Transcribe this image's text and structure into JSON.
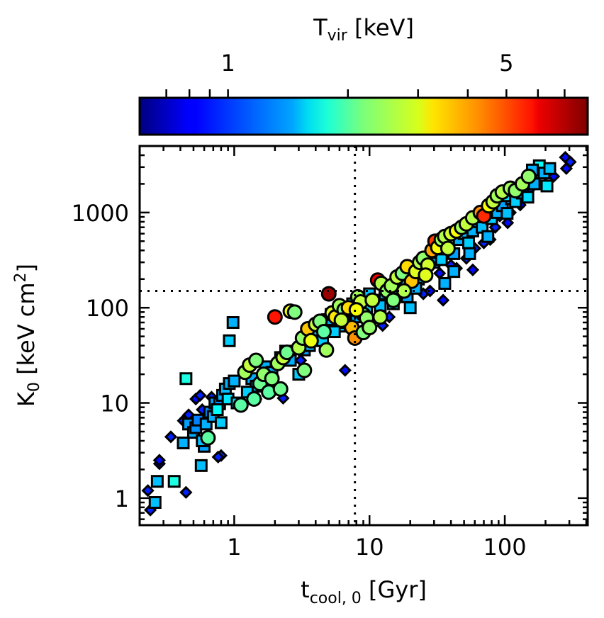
{
  "chart_data": {
    "type": "scatter",
    "title": "",
    "xlabel": "t_cool,0 [Gyr]",
    "xlabel_main": "t",
    "xlabel_sub": "cool, 0",
    "xlabel_rest": " [Gyr]",
    "ylabel_main": "K",
    "ylabel_sub": "0",
    "ylabel_rest": " [keV cm",
    "ylabel_sup": "2",
    "ylabel_end": "]",
    "ylabel": "K_0 [keV cm^2]",
    "xscale": "log",
    "yscale": "log",
    "xlim": [
      0.2,
      410
    ],
    "ylim": [
      0.52,
      5000
    ],
    "xticks": [
      1,
      10,
      100
    ],
    "xtick_labels": [
      "1",
      "10",
      "100"
    ],
    "yticks": [
      1,
      10,
      100,
      1000
    ],
    "ytick_labels": [
      "1",
      "10",
      "100",
      "1000"
    ],
    "grid": false,
    "reference_lines": [
      {
        "orientation": "vertical",
        "value": 7.8,
        "style": "dotted"
      },
      {
        "orientation": "horizontal",
        "value": 150,
        "style": "dotted"
      }
    ],
    "colorbar": {
      "label": "T_vir [keV]",
      "label_main": "T",
      "label_sub": "vir",
      "label_rest": " [keV]",
      "cmap": "jet",
      "scale": "log",
      "range": [
        0.6,
        8.0
      ],
      "ticks": [
        1,
        5
      ],
      "tick_labels": [
        "1",
        "5"
      ],
      "minor_ticks": [
        0.7,
        0.8,
        0.9,
        2,
        3,
        4,
        6,
        7
      ],
      "placement": "top"
    },
    "series": [
      {
        "name": "diamonds",
        "marker": "diamond",
        "points": [
          [
            0.23,
            1.2,
            0.9
          ],
          [
            0.24,
            0.75,
            0.9
          ],
          [
            0.28,
            2.3,
            0.85
          ],
          [
            0.28,
            2.5,
            0.85
          ],
          [
            0.34,
            4.4,
            0.9
          ],
          [
            0.44,
            1.15,
            0.9
          ],
          [
            0.42,
            6.5,
            0.9
          ],
          [
            0.46,
            7.5,
            0.9
          ],
          [
            0.52,
            11,
            0.85
          ],
          [
            0.56,
            12,
            0.9
          ],
          [
            0.58,
            8.5,
            0.9
          ],
          [
            0.8,
            2.8,
            0.95
          ],
          [
            0.76,
            2.7,
            0.9
          ],
          [
            0.68,
            11.5,
            0.9
          ],
          [
            2.3,
            11.2,
            0.9
          ],
          [
            6.6,
            22,
            0.85
          ],
          [
            3.1,
            28,
            0.9
          ],
          [
            4.8,
            40,
            0.85
          ],
          [
            12.5,
            65,
            0.9
          ],
          [
            14,
            80,
            0.9
          ],
          [
            25,
            140,
            0.9
          ],
          [
            28,
            150,
            0.85
          ],
          [
            33,
            230,
            0.85
          ],
          [
            40,
            280,
            0.9
          ],
          [
            44,
            260,
            0.85
          ],
          [
            52,
            330,
            0.9
          ],
          [
            58,
            250,
            0.85
          ],
          [
            70,
            480,
            0.9
          ],
          [
            78,
            520,
            0.85
          ],
          [
            85,
            700,
            0.9
          ],
          [
            92,
            920,
            0.85
          ],
          [
            110,
            1000,
            0.9
          ],
          [
            130,
            1200,
            0.85
          ],
          [
            150,
            1700,
            0.9
          ],
          [
            170,
            2100,
            0.85
          ],
          [
            200,
            2500,
            0.9
          ],
          [
            230,
            2400,
            0.85
          ],
          [
            280,
            3800,
            0.85
          ],
          [
            305,
            3400,
            0.9
          ],
          [
            285,
            2900,
            0.85
          ],
          [
            35,
            120,
            0.85
          ],
          [
            60,
            420,
            0.9
          ],
          [
            105,
            780,
            0.85
          ],
          [
            1.45,
            11,
            0.9
          ],
          [
            9,
            60,
            0.9
          ]
        ]
      },
      {
        "name": "squares",
        "marker": "square",
        "points": [
          [
            0.26,
            0.9,
            1.35
          ],
          [
            0.27,
            1.5,
            1.35
          ],
          [
            0.36,
            1.5,
            1.7
          ],
          [
            0.57,
            2.2,
            1.35
          ],
          [
            0.42,
            3.8,
            1.3
          ],
          [
            0.46,
            6.0,
            1.25
          ],
          [
            0.5,
            4.9,
            1.3
          ],
          [
            0.52,
            5.5,
            1.2
          ],
          [
            0.54,
            6.6,
            1.15
          ],
          [
            0.6,
            3.5,
            1.25
          ],
          [
            0.62,
            6.0,
            1.3
          ],
          [
            0.58,
            4.0,
            1.35
          ],
          [
            0.66,
            8.0,
            1.2
          ],
          [
            0.7,
            7.2,
            1.3
          ],
          [
            0.72,
            10.0,
            1.25
          ],
          [
            0.78,
            9.8,
            1.2
          ],
          [
            0.8,
            6.2,
            1.4
          ],
          [
            0.82,
            12.0,
            1.3
          ],
          [
            0.86,
            14.0,
            1.35
          ],
          [
            0.9,
            11.0,
            1.5
          ],
          [
            0.92,
            16,
            1.3
          ],
          [
            1.0,
            17,
            1.3
          ],
          [
            1.05,
            10,
            1.45
          ],
          [
            0.44,
            18,
            1.7
          ],
          [
            0.92,
            45,
            1.4
          ],
          [
            0.98,
            70,
            1.3
          ],
          [
            1.35,
            18,
            1.3
          ],
          [
            1.45,
            15,
            1.4
          ],
          [
            1.7,
            24,
            1.3
          ],
          [
            1.9,
            21,
            1.3
          ],
          [
            2.2,
            30,
            1.25
          ],
          [
            2.6,
            28,
            1.3
          ],
          [
            3.0,
            20,
            1.4
          ],
          [
            3.3,
            36,
            1.25
          ],
          [
            3.6,
            40,
            1.3
          ],
          [
            4.1,
            50,
            1.35
          ],
          [
            4.5,
            45,
            1.4
          ],
          [
            4.9,
            75,
            1.3
          ],
          [
            5.2,
            85,
            1.25
          ],
          [
            6.0,
            64,
            1.35
          ],
          [
            6.5,
            70,
            1.4
          ],
          [
            7.0,
            92,
            1.3
          ],
          [
            8.5,
            110,
            1.3
          ],
          [
            9.5,
            95,
            1.4
          ],
          [
            11,
            120,
            1.25
          ],
          [
            12,
            105,
            1.35
          ],
          [
            13,
            140,
            1.3
          ],
          [
            15,
            110,
            1.4
          ],
          [
            16,
            160,
            1.3
          ],
          [
            18,
            180,
            1.35
          ],
          [
            19,
            130,
            1.25
          ],
          [
            21,
            220,
            1.3
          ],
          [
            23,
            200,
            1.4
          ],
          [
            26,
            260,
            1.3
          ],
          [
            27,
            340,
            1.25
          ],
          [
            30,
            300,
            1.35
          ],
          [
            32,
            380,
            1.3
          ],
          [
            34,
            320,
            1.4
          ],
          [
            38,
            420,
            1.3
          ],
          [
            42,
            370,
            1.25
          ],
          [
            46,
            520,
            1.3
          ],
          [
            50,
            600,
            1.35
          ],
          [
            54,
            480,
            1.4
          ],
          [
            58,
            640,
            1.3
          ],
          [
            64,
            800,
            1.25
          ],
          [
            68,
            700,
            1.35
          ],
          [
            72,
            900,
            1.3
          ],
          [
            80,
            860,
            1.4
          ],
          [
            88,
            1000,
            1.3
          ],
          [
            96,
            1180,
            1.25
          ],
          [
            104,
            980,
            1.35
          ],
          [
            112,
            1400,
            1.3
          ],
          [
            120,
            1300,
            1.4
          ],
          [
            135,
            1600,
            1.3
          ],
          [
            148,
            1450,
            1.45
          ],
          [
            165,
            2000,
            1.3
          ],
          [
            180,
            3100,
            1.6
          ],
          [
            195,
            2600,
            1.3
          ],
          [
            215,
            2900,
            1.35
          ],
          [
            205,
            1900,
            1.5
          ],
          [
            22,
            160,
            1.3
          ],
          [
            10,
            140,
            1.35
          ],
          [
            7.5,
            110,
            1.45
          ],
          [
            36,
            180,
            1.3
          ],
          [
            42,
            240,
            1.3
          ],
          [
            20,
            100,
            1.35
          ],
          [
            55,
            370,
            1.3
          ],
          [
            75,
            560,
            1.3
          ],
          [
            8,
            80,
            1.3
          ],
          [
            5.5,
            56,
            1.4
          ],
          [
            160,
            2800,
            1.3
          ],
          [
            100,
            1500,
            1.45
          ],
          [
            2.4,
            35,
            1.5
          ],
          [
            1.25,
            13,
            1.4
          ],
          [
            0.75,
            8.5,
            1.6
          ]
        ]
      },
      {
        "name": "circles",
        "marker": "circle",
        "points": [
          [
            0.64,
            4.3,
            2.0
          ],
          [
            1.12,
            9.5,
            2.0
          ],
          [
            1.2,
            21,
            2.4
          ],
          [
            1.3,
            25,
            2.6
          ],
          [
            1.45,
            28,
            2.2
          ],
          [
            1.55,
            16,
            2.1
          ],
          [
            1.65,
            20,
            2.3
          ],
          [
            1.8,
            13,
            2.0
          ],
          [
            1.9,
            18,
            2.2
          ],
          [
            2.0,
            80,
            5.5
          ],
          [
            2.1,
            26,
            2.4
          ],
          [
            2.3,
            30,
            2.6
          ],
          [
            2.45,
            34,
            2.1
          ],
          [
            2.6,
            92,
            2.9
          ],
          [
            2.8,
            90,
            2.2
          ],
          [
            3.0,
            38,
            2.5
          ],
          [
            3.2,
            48,
            2.3
          ],
          [
            3.5,
            60,
            3.5
          ],
          [
            3.7,
            45,
            2.9
          ],
          [
            4.0,
            67,
            2.6
          ],
          [
            4.3,
            72,
            2.2
          ],
          [
            4.6,
            56,
            2.0
          ],
          [
            5.0,
            140,
            7.5
          ],
          [
            5.3,
            88,
            2.8
          ],
          [
            5.6,
            80,
            3.2
          ],
          [
            6.0,
            105,
            2.4
          ],
          [
            6.5,
            95,
            2.2
          ],
          [
            7.0,
            100,
            3.3
          ],
          [
            7.4,
            62,
            3.6
          ],
          [
            7.8,
            48,
            4.0
          ],
          [
            8.2,
            130,
            2.4
          ],
          [
            8.6,
            115,
            2.6
          ],
          [
            9.0,
            85,
            2.1
          ],
          [
            9.5,
            78,
            2.3
          ],
          [
            10.5,
            120,
            2.6
          ],
          [
            11.5,
            195,
            6.0
          ],
          [
            12.2,
            180,
            2.5
          ],
          [
            13.5,
            150,
            2.3
          ],
          [
            14.5,
            170,
            2.4
          ],
          [
            16,
            210,
            2.6
          ],
          [
            17.5,
            230,
            2.2
          ],
          [
            19,
            270,
            3.3
          ],
          [
            20.5,
            190,
            3.5
          ],
          [
            22,
            240,
            2.8
          ],
          [
            23.5,
            300,
            2.5
          ],
          [
            25,
            330,
            2.3
          ],
          [
            27,
            280,
            2.7
          ],
          [
            29,
            400,
            3.8
          ],
          [
            30.5,
            500,
            5.0
          ],
          [
            32,
            430,
            3.0
          ],
          [
            34,
            520,
            2.4
          ],
          [
            36,
            560,
            2.5
          ],
          [
            40,
            600,
            2.7
          ],
          [
            44,
            640,
            3.0
          ],
          [
            48,
            700,
            2.4
          ],
          [
            52,
            760,
            2.6
          ],
          [
            58,
            880,
            2.5
          ],
          [
            66,
            1000,
            4.0
          ],
          [
            70,
            920,
            5.2
          ],
          [
            76,
            1180,
            3.0
          ],
          [
            82,
            1300,
            2.6
          ],
          [
            88,
            1500,
            2.4
          ],
          [
            96,
            1640,
            2.5
          ],
          [
            110,
            1800,
            2.4
          ],
          [
            120,
            1700,
            2.3
          ],
          [
            135,
            2000,
            2.4
          ],
          [
            150,
            2400,
            2.3
          ],
          [
            9,
            55,
            2.2
          ],
          [
            6.2,
            74,
            2.6
          ],
          [
            4.8,
            36,
            2.4
          ],
          [
            3.3,
            22,
            2.2
          ],
          [
            2.2,
            14,
            2.1
          ],
          [
            1.4,
            11,
            2.0
          ],
          [
            15,
            120,
            2.2
          ],
          [
            18,
            150,
            2.5
          ],
          [
            26,
            220,
            2.8
          ],
          [
            38,
            420,
            2.6
          ],
          [
            10,
            62,
            2.3
          ],
          [
            12,
            80,
            2.5
          ],
          [
            8,
            95,
            3.0
          ]
        ]
      }
    ]
  }
}
